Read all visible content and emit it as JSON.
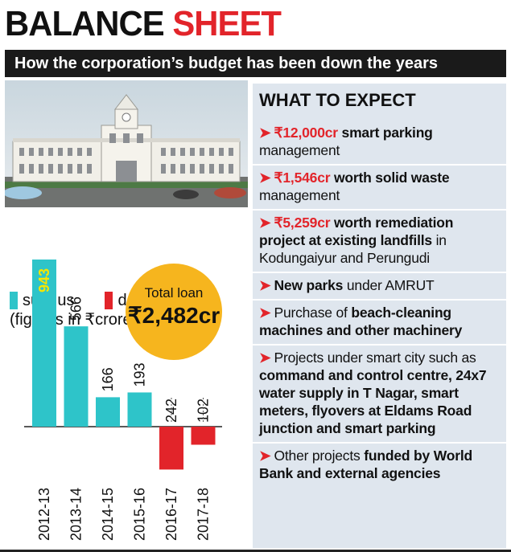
{
  "header": {
    "title_part1": "BALANCE",
    "title_part2": "SHEET",
    "subtitle": "How the corporation’s budget has been down the years"
  },
  "legend": {
    "surplus_label": "surplus",
    "deficit_label": "deficit",
    "units_note": "(figures in ₹crore)"
  },
  "loan_badge": {
    "label": "Total loan",
    "value": "₹2,482cr"
  },
  "chart_data": {
    "type": "bar",
    "categories": [
      "2012-13",
      "2013-14",
      "2014-15",
      "2015-16",
      "2016-17",
      "2017-18"
    ],
    "values": [
      943,
      566,
      166,
      193,
      -242,
      -102
    ],
    "value_labels": [
      "943",
      "566",
      "166",
      "193",
      "242",
      "102"
    ],
    "series": [
      {
        "name": "surplus",
        "values": [
          943,
          566,
          166,
          193,
          null,
          null
        ]
      },
      {
        "name": "deficit",
        "values": [
          null,
          null,
          null,
          null,
          -242,
          -102
        ]
      }
    ],
    "colors": {
      "surplus": "#2ec4c9",
      "deficit": "#e2242a"
    },
    "title": "",
    "xlabel": "",
    "ylabel": "",
    "ylim": [
      -300,
      1000
    ],
    "grid": false,
    "legend": "top-left"
  },
  "expect": {
    "title": "WHAT TO EXPECT",
    "items": [
      {
        "parts": [
          {
            "t": "₹12,000cr",
            "s": "red"
          },
          {
            "t": " smart parking",
            "s": "bold"
          },
          {
            "t": " management",
            "s": ""
          }
        ]
      },
      {
        "parts": [
          {
            "t": "₹1,546cr",
            "s": "red"
          },
          {
            "t": " worth solid waste",
            "s": "bold"
          },
          {
            "t": " management",
            "s": ""
          }
        ]
      },
      {
        "parts": [
          {
            "t": "₹5,259cr",
            "s": "red"
          },
          {
            "t": " worth remediation project at existing landfills",
            "s": "bold"
          },
          {
            "t": " in Kodungaiyur and Perungudi",
            "s": ""
          }
        ]
      },
      {
        "parts": [
          {
            "t": "New parks",
            "s": "bold"
          },
          {
            "t": " under AMRUT",
            "s": ""
          }
        ]
      },
      {
        "parts": [
          {
            "t": "Purchase of ",
            "s": ""
          },
          {
            "t": "beach-cleaning machines and other machinery",
            "s": "bold"
          }
        ]
      },
      {
        "parts": [
          {
            "t": "Projects under smart city such as ",
            "s": ""
          },
          {
            "t": "command and control centre, 24x7 water supply in T Nagar, smart meters, flyovers at Eldams Road junction and smart parking",
            "s": "bold"
          }
        ]
      },
      {
        "parts": [
          {
            "t": "Other projects ",
            "s": ""
          },
          {
            "t": "funded by World Bank and external agencies",
            "s": "bold"
          }
        ]
      }
    ]
  }
}
